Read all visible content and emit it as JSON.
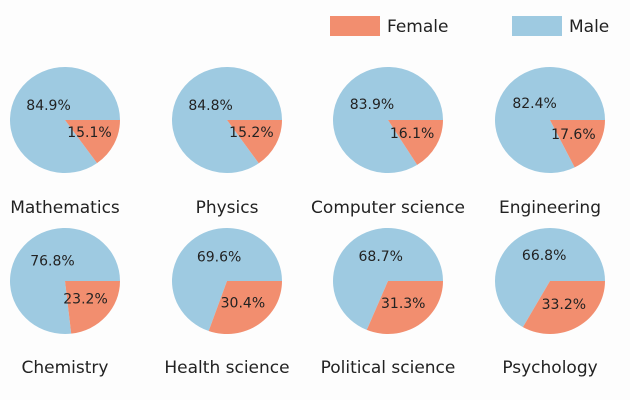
{
  "chart_data": {
    "type": "pie",
    "legend": {
      "placement": "top-right",
      "entries": [
        {
          "name": "Female",
          "color": "#f28e6f"
        },
        {
          "name": "Male",
          "color": "#9ecae1"
        }
      ]
    },
    "charts": [
      {
        "title": "Mathematics",
        "male": 84.9,
        "female": 15.1,
        "male_label": "84.9%",
        "female_label": "15.1%"
      },
      {
        "title": "Physics",
        "male": 84.8,
        "female": 15.2,
        "male_label": "84.8%",
        "female_label": "15.2%"
      },
      {
        "title": "Computer science",
        "male": 83.9,
        "female": 16.1,
        "male_label": "83.9%",
        "female_label": "16.1%"
      },
      {
        "title": "Engineering",
        "male": 82.4,
        "female": 17.6,
        "male_label": "82.4%",
        "female_label": "17.6%"
      },
      {
        "title": "Chemistry",
        "male": 76.8,
        "female": 23.2,
        "male_label": "76.8%",
        "female_label": "23.2%"
      },
      {
        "title": "Health science",
        "male": 69.6,
        "female": 30.4,
        "male_label": "69.6%",
        "female_label": "30.4%"
      },
      {
        "title": "Political science",
        "male": 68.7,
        "female": 31.3,
        "male_label": "68.7%",
        "female_label": "31.3%"
      },
      {
        "title": "Psychology",
        "male": 66.8,
        "female": 33.2,
        "male_label": "66.8%",
        "female_label": "33.2%"
      }
    ]
  }
}
